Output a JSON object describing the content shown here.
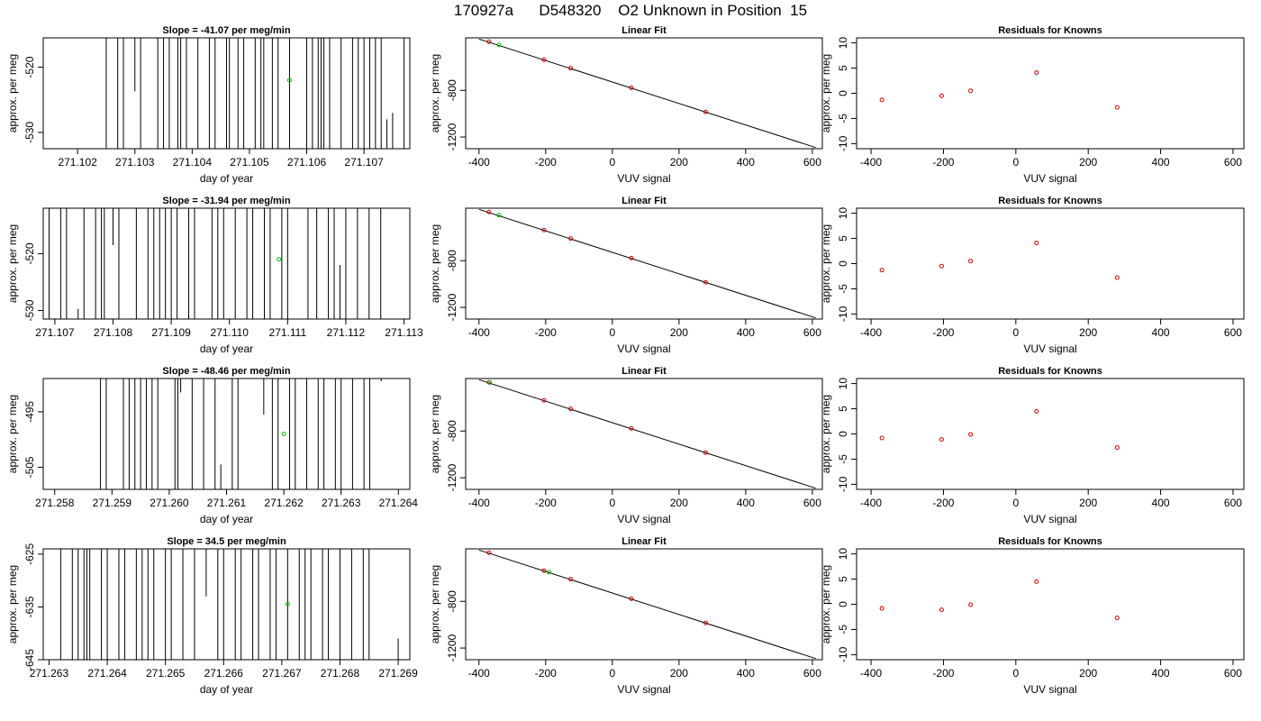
{
  "title": "170927a      D548320    O2 Unknown in Position  15",
  "colors": {
    "trace": "#000000",
    "known": "#cc0000",
    "unknown": "#00c000"
  },
  "chart_data": [
    {
      "type": "line",
      "title": "Slope =  -41.07  per meg/min",
      "xlabel": "day of year",
      "ylabel": "approx. per meg",
      "xlim": [
        271.1014,
        271.1078
      ],
      "ylim": [
        -532.5,
        -515.5
      ],
      "xticks": [
        271.102,
        271.103,
        271.104,
        271.105,
        271.106,
        271.107
      ],
      "xtick_labels": [
        "271.102",
        "271.103",
        "271.104",
        "271.105",
        "271.106",
        "271.107"
      ],
      "yticks": [
        -520,
        -530
      ],
      "ytick_labels": [
        "-520",
        "-530"
      ],
      "spikes": [
        {
          "x": 271.1025
        },
        {
          "x": 271.1027
        },
        {
          "x": 271.1028
        },
        {
          "x": 271.103,
          "y0": -515.5,
          "y1": -523.7
        },
        {
          "x": 271.1031
        },
        {
          "x": 271.1034
        },
        {
          "x": 271.1035
        },
        {
          "x": 271.1036
        },
        {
          "x": 271.10375
        },
        {
          "x": 271.1038
        },
        {
          "x": 271.1039
        },
        {
          "x": 271.1041
        },
        {
          "x": 271.1043
        },
        {
          "x": 271.1044
        },
        {
          "x": 271.1046
        },
        {
          "x": 271.10465
        },
        {
          "x": 271.1048
        },
        {
          "x": 271.1049
        },
        {
          "x": 271.1051
        },
        {
          "x": 271.1052
        },
        {
          "x": 271.10525
        },
        {
          "x": 271.1054
        },
        {
          "x": 271.1055
        },
        {
          "x": 271.1057
        },
        {
          "x": 271.106
        },
        {
          "x": 271.1061
        },
        {
          "x": 271.1062
        },
        {
          "x": 271.10625
        },
        {
          "x": 271.1063
        },
        {
          "x": 271.1064
        },
        {
          "x": 271.1066
        },
        {
          "x": 271.1068
        },
        {
          "x": 271.1069
        },
        {
          "x": 271.107
        },
        {
          "x": 271.1071
        },
        {
          "x": 271.1072
        },
        {
          "x": 271.1073
        },
        {
          "x": 271.1074,
          "y0": -532.5,
          "y1": -528
        },
        {
          "x": 271.1075,
          "y0": -532.5,
          "y1": -527
        },
        {
          "x": 271.1077
        }
      ],
      "unknown_point": {
        "x": 271.1057,
        "y": -522
      }
    },
    {
      "type": "scatter",
      "title": "Linear Fit",
      "xlabel": "VUV signal",
      "ylabel": "approx. per meg",
      "xlim": [
        -440,
        630
      ],
      "ylim": [
        -1300,
        -350
      ],
      "xticks": [
        -400,
        -200,
        0,
        200,
        400,
        600
      ],
      "yticks": [
        -800,
        -1200
      ],
      "fit_line": [
        {
          "x": -400,
          "y": -360
        },
        {
          "x": 610,
          "y": -1290
        }
      ],
      "known_points": [
        {
          "x": -370,
          "y": -383
        },
        {
          "x": -205,
          "y": -537
        },
        {
          "x": -125,
          "y": -610
        },
        {
          "x": 57,
          "y": -778
        },
        {
          "x": 280,
          "y": -985
        }
      ],
      "unknown_point": {
        "x": -340,
        "y": -410
      }
    },
    {
      "type": "scatter",
      "title": "Residuals for Knowns",
      "xlabel": "VUV signal",
      "ylabel": "approx. per meg",
      "xlim": [
        -440,
        630
      ],
      "ylim": [
        -11,
        11
      ],
      "xticks": [
        -400,
        -200,
        0,
        200,
        400,
        600
      ],
      "yticks": [
        -10,
        -5,
        0,
        5,
        10
      ],
      "points": [
        {
          "x": -370,
          "y": -1.3
        },
        {
          "x": -205,
          "y": -0.5
        },
        {
          "x": -125,
          "y": 0.5
        },
        {
          "x": 57,
          "y": 4.1
        },
        {
          "x": 280,
          "y": -2.8
        }
      ]
    },
    {
      "type": "line",
      "title": "Slope =  -31.94  per meg/min",
      "xlabel": "day of year",
      "ylabel": "approx. per meg",
      "xlim": [
        271.1068,
        271.1131
      ],
      "ylim": [
        -531.5,
        -512
      ],
      "xticks": [
        271.107,
        271.108,
        271.109,
        271.11,
        271.111,
        271.112,
        271.113
      ],
      "xtick_labels": [
        "271.107",
        "271.108",
        "271.109",
        "271.110",
        "271.111",
        "271.112",
        "271.113"
      ],
      "yticks": [
        -520,
        -530
      ],
      "ytick_labels": [
        "-520",
        "-530"
      ],
      "spikes": [
        {
          "x": 271.1069
        },
        {
          "x": 271.1071
        },
        {
          "x": 271.1072
        },
        {
          "x": 271.1074,
          "y0": -531.5,
          "y1": -529.7
        },
        {
          "x": 271.1075
        },
        {
          "x": 271.1077
        },
        {
          "x": 271.1078
        },
        {
          "x": 271.10785
        },
        {
          "x": 271.108,
          "y0": -512,
          "y1": -518.5
        },
        {
          "x": 271.1081
        },
        {
          "x": 271.1084
        },
        {
          "x": 271.1086
        },
        {
          "x": 271.1087
        },
        {
          "x": 271.1088
        },
        {
          "x": 271.1089
        },
        {
          "x": 271.109
        },
        {
          "x": 271.1091
        },
        {
          "x": 271.1093
        },
        {
          "x": 271.1094
        },
        {
          "x": 271.1097
        },
        {
          "x": 271.1098
        },
        {
          "x": 271.1099
        },
        {
          "x": 271.1101
        },
        {
          "x": 271.1103
        },
        {
          "x": 271.1104
        },
        {
          "x": 271.1106
        },
        {
          "x": 271.1107
        },
        {
          "x": 271.1109
        },
        {
          "x": 271.111
        },
        {
          "x": 271.11135
        },
        {
          "x": 271.1115
        },
        {
          "x": 271.1117
        },
        {
          "x": 271.1118
        },
        {
          "x": 271.1119,
          "y0": -531.5,
          "y1": -522
        },
        {
          "x": 271.112
        },
        {
          "x": 271.1122
        },
        {
          "x": 271.1124
        },
        {
          "x": 271.1126
        }
      ],
      "unknown_point": {
        "x": 271.11085,
        "y": -521
      }
    },
    {
      "type": "scatter",
      "title": "Linear Fit",
      "xlabel": "VUV signal",
      "ylabel": "approx. per meg",
      "xlim": [
        -440,
        630
      ],
      "ylim": [
        -1300,
        -350
      ],
      "xticks": [
        -400,
        -200,
        0,
        200,
        400,
        600
      ],
      "yticks": [
        -800,
        -1200
      ],
      "fit_line": [
        {
          "x": -400,
          "y": -360
        },
        {
          "x": 610,
          "y": -1290
        }
      ],
      "known_points": [
        {
          "x": -370,
          "y": -383
        },
        {
          "x": -205,
          "y": -537
        },
        {
          "x": -125,
          "y": -610
        },
        {
          "x": 57,
          "y": -778
        },
        {
          "x": 280,
          "y": -985
        }
      ],
      "unknown_point": {
        "x": -340,
        "y": -410
      }
    },
    {
      "type": "scatter",
      "title": "Residuals for Knowns",
      "xlabel": "VUV signal",
      "ylabel": "approx. per meg",
      "xlim": [
        -440,
        630
      ],
      "ylim": [
        -11,
        11
      ],
      "xticks": [
        -400,
        -200,
        0,
        200,
        400,
        600
      ],
      "yticks": [
        -10,
        -5,
        0,
        5,
        10
      ],
      "points": [
        {
          "x": -370,
          "y": -1.3
        },
        {
          "x": -205,
          "y": -0.5
        },
        {
          "x": -125,
          "y": 0.5
        },
        {
          "x": 57,
          "y": 4.1
        },
        {
          "x": 280,
          "y": -2.8
        }
      ]
    },
    {
      "type": "line",
      "title": "Slope =  -48.46  per meg/min",
      "xlabel": "day of year",
      "ylabel": "approx. per meg",
      "xlim": [
        271.2578,
        271.2642
      ],
      "ylim": [
        -509,
        -489
      ],
      "xticks": [
        271.258,
        271.259,
        271.26,
        271.261,
        271.262,
        271.263,
        271.264
      ],
      "xtick_labels": [
        "271.258",
        "271.259",
        "271.260",
        "271.261",
        "271.262",
        "271.263",
        "271.264"
      ],
      "yticks": [
        -495,
        -505
      ],
      "ytick_labels": [
        "-495",
        "-505"
      ],
      "spikes": [
        {
          "x": 271.2588
        },
        {
          "x": 271.2589
        },
        {
          "x": 271.2592
        },
        {
          "x": 271.2593
        },
        {
          "x": 271.2594
        },
        {
          "x": 271.2595
        },
        {
          "x": 271.2596
        },
        {
          "x": 271.2597
        },
        {
          "x": 271.2598
        },
        {
          "x": 271.2601
        },
        {
          "x": 271.26015
        },
        {
          "x": 271.2602,
          "y0": -489,
          "y1": -491.5
        },
        {
          "x": 271.2604
        },
        {
          "x": 271.2606
        },
        {
          "x": 271.2608
        },
        {
          "x": 271.2609,
          "y0": -509,
          "y1": -504.5
        },
        {
          "x": 271.2611
        },
        {
          "x": 271.2612
        },
        {
          "x": 271.26165,
          "y0": -489,
          "y1": -495.5
        },
        {
          "x": 271.2618
        },
        {
          "x": 271.2619
        },
        {
          "x": 271.2621
        },
        {
          "x": 271.2622
        },
        {
          "x": 271.2624
        },
        {
          "x": 271.2626
        },
        {
          "x": 271.2627
        },
        {
          "x": 271.2629
        },
        {
          "x": 271.263
        },
        {
          "x": 271.2632
        },
        {
          "x": 271.2634
        },
        {
          "x": 271.2635
        },
        {
          "x": 271.2637,
          "y0": -489,
          "y1": -489.5
        }
      ],
      "unknown_point": {
        "x": 271.262,
        "y": -499
      }
    },
    {
      "type": "scatter",
      "title": "Linear Fit",
      "xlabel": "VUV signal",
      "ylabel": "approx. per meg",
      "xlim": [
        -440,
        630
      ],
      "ylim": [
        -1300,
        -350
      ],
      "xticks": [
        -400,
        -200,
        0,
        200,
        400,
        600
      ],
      "yticks": [
        -800,
        -1200
      ],
      "fit_line": [
        {
          "x": -400,
          "y": -360
        },
        {
          "x": 610,
          "y": -1290
        }
      ],
      "known_points": [
        {
          "x": -370,
          "y": -383
        },
        {
          "x": -205,
          "y": -537
        },
        {
          "x": -125,
          "y": -610
        },
        {
          "x": 57,
          "y": -778
        },
        {
          "x": 280,
          "y": -985
        }
      ],
      "unknown_point": {
        "x": -368,
        "y": -385
      }
    },
    {
      "type": "scatter",
      "title": "Residuals for Knowns",
      "xlabel": "VUV signal",
      "ylabel": "approx. per meg",
      "xlim": [
        -440,
        630
      ],
      "ylim": [
        -11,
        11
      ],
      "xticks": [
        -400,
        -200,
        0,
        200,
        400,
        600
      ],
      "yticks": [
        -10,
        -5,
        0,
        5,
        10
      ],
      "points": [
        {
          "x": -370,
          "y": -0.8
        },
        {
          "x": -205,
          "y": -1.1
        },
        {
          "x": -125,
          "y": -0.1
        },
        {
          "x": 57,
          "y": 4.5
        },
        {
          "x": 280,
          "y": -2.7
        }
      ]
    },
    {
      "type": "line",
      "title": "Slope =  34.5  per meg/min",
      "xlabel": "day of year",
      "ylabel": "approx. per meg",
      "xlim": [
        271.2629,
        271.2692
      ],
      "ylim": [
        -645,
        -624
      ],
      "xticks": [
        271.263,
        271.264,
        271.265,
        271.266,
        271.267,
        271.268,
        271.269
      ],
      "xtick_labels": [
        "271.263",
        "271.264",
        "271.265",
        "271.266",
        "271.267",
        "271.268",
        "271.269"
      ],
      "yticks": [
        -625,
        -635,
        -645
      ],
      "ytick_labels": [
        "-625",
        "-635",
        "-645"
      ],
      "spikes": [
        {
          "x": 271.2632
        },
        {
          "x": 271.2634
        },
        {
          "x": 271.2635
        },
        {
          "x": 271.2636
        },
        {
          "x": 271.26365
        },
        {
          "x": 271.2637
        },
        {
          "x": 271.2639
        },
        {
          "x": 271.264
        },
        {
          "x": 271.2642
        },
        {
          "x": 271.2643
        },
        {
          "x": 271.2645
        },
        {
          "x": 271.2646
        },
        {
          "x": 271.2647
        },
        {
          "x": 271.2648
        },
        {
          "x": 271.265
        },
        {
          "x": 271.2651
        },
        {
          "x": 271.2653
        },
        {
          "x": 271.2655
        },
        {
          "x": 271.2657,
          "y0": -624,
          "y1": -633
        },
        {
          "x": 271.2659
        },
        {
          "x": 271.266
        },
        {
          "x": 271.2662
        },
        {
          "x": 271.2663
        },
        {
          "x": 271.2665
        },
        {
          "x": 271.2666
        },
        {
          "x": 271.2668
        },
        {
          "x": 271.2669
        },
        {
          "x": 271.2671
        },
        {
          "x": 271.2673
        },
        {
          "x": 271.2674
        },
        {
          "x": 271.2675
        },
        {
          "x": 271.2677
        },
        {
          "x": 271.2678
        },
        {
          "x": 271.268
        },
        {
          "x": 271.2682
        },
        {
          "x": 271.2684
        },
        {
          "x": 271.2685
        },
        {
          "x": 271.269,
          "y0": -645,
          "y1": -641
        }
      ],
      "unknown_point": {
        "x": 271.2671,
        "y": -634.5
      }
    },
    {
      "type": "scatter",
      "title": "Linear Fit",
      "xlabel": "VUV signal",
      "ylabel": "approx. per meg",
      "xlim": [
        -440,
        630
      ],
      "ylim": [
        -1300,
        -350
      ],
      "xticks": [
        -400,
        -200,
        0,
        200,
        400,
        600
      ],
      "yticks": [
        -800,
        -1200
      ],
      "fit_line": [
        {
          "x": -400,
          "y": -360
        },
        {
          "x": 610,
          "y": -1290
        }
      ],
      "known_points": [
        {
          "x": -370,
          "y": -383
        },
        {
          "x": -205,
          "y": -537
        },
        {
          "x": -125,
          "y": -610
        },
        {
          "x": 57,
          "y": -778
        },
        {
          "x": 280,
          "y": -985
        }
      ],
      "unknown_point": {
        "x": -190,
        "y": -550
      }
    },
    {
      "type": "scatter",
      "title": "Residuals for Knowns",
      "xlabel": "VUV signal",
      "ylabel": "approx. per meg",
      "xlim": [
        -440,
        630
      ],
      "ylim": [
        -11,
        11
      ],
      "xticks": [
        -400,
        -200,
        0,
        200,
        400,
        600
      ],
      "yticks": [
        -10,
        -5,
        0,
        5,
        10
      ],
      "points": [
        {
          "x": -370,
          "y": -0.8
        },
        {
          "x": -205,
          "y": -1.1
        },
        {
          "x": -125,
          "y": -0.1
        },
        {
          "x": 57,
          "y": 4.5
        },
        {
          "x": 280,
          "y": -2.7
        }
      ]
    }
  ]
}
